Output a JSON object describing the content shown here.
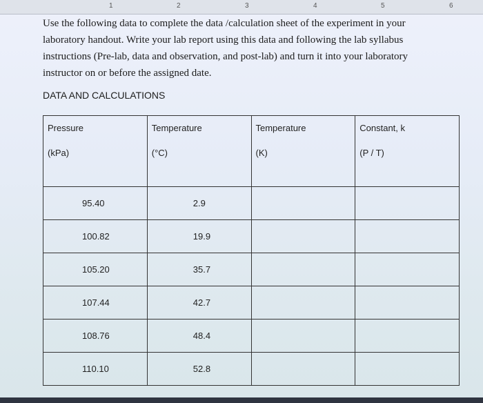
{
  "ruler": {
    "labels": [
      "1",
      "2",
      "3",
      "4",
      "5",
      "6"
    ]
  },
  "paragraph": {
    "lines": [
      "Use the following data to complete the data /calculation sheet of the experiment in your",
      "laboratory handout. Write your lab report using this data and following the lab syllabus",
      "instructions (Pre-lab, data and observation, and post-lab) and turn it into your laboratory",
      "instructor on or before the assigned date."
    ]
  },
  "heading": "DATA AND CALCULATIONS",
  "table": {
    "headers": [
      [
        "Pressure",
        "(kPa)"
      ],
      [
        "Temperature",
        "(°C)"
      ],
      [
        "Temperature",
        "(K)"
      ],
      [
        "Constant, k",
        "(P / T)"
      ]
    ],
    "rows": [
      [
        "95.40",
        "2.9"
      ],
      [
        "100.82",
        "19.9"
      ],
      [
        "105.20",
        "35.7"
      ],
      [
        "107.44",
        "42.7"
      ],
      [
        "108.76",
        "48.4"
      ],
      [
        "110.10",
        "52.8"
      ]
    ]
  }
}
